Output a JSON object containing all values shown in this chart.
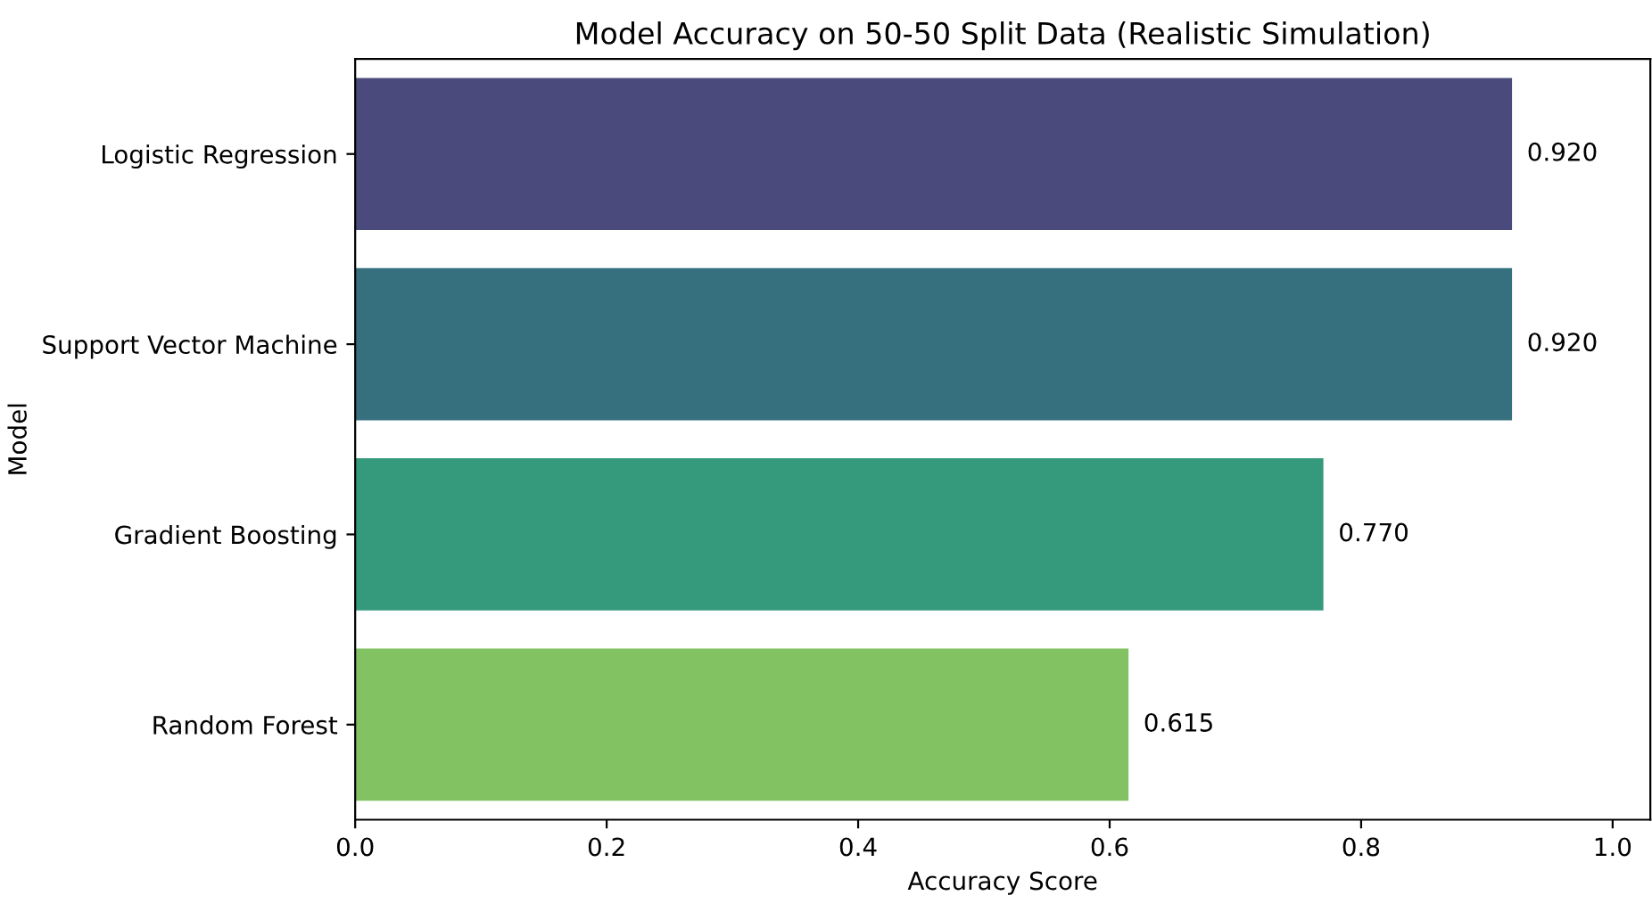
{
  "chart_data": {
    "type": "bar",
    "orientation": "horizontal",
    "title": "Model Accuracy on 50-50 Split Data (Realistic Simulation)",
    "xlabel": "Accuracy Score",
    "ylabel": "Model",
    "categories": [
      "Logistic Regression",
      "Support Vector Machine",
      "Gradient Boosting",
      "Random Forest"
    ],
    "values": [
      0.92,
      0.92,
      0.77,
      0.615
    ],
    "colors": [
      "#4a4a7c",
      "#36707f",
      "#359a7c",
      "#82c262"
    ],
    "value_labels": [
      "0.920",
      "0.920",
      "0.770",
      "0.615"
    ],
    "xlim": [
      0,
      1.03
    ],
    "xticks": [
      {
        "value": 0,
        "label": "0.0"
      },
      {
        "value": 0.2,
        "label": "0.2"
      },
      {
        "value": 0.4,
        "label": "0.4"
      },
      {
        "value": 0.6,
        "label": "0.6"
      },
      {
        "value": 0.8,
        "label": "0.8"
      },
      {
        "value": 1.0,
        "label": "1.0"
      }
    ],
    "grid": false,
    "legend": false
  }
}
